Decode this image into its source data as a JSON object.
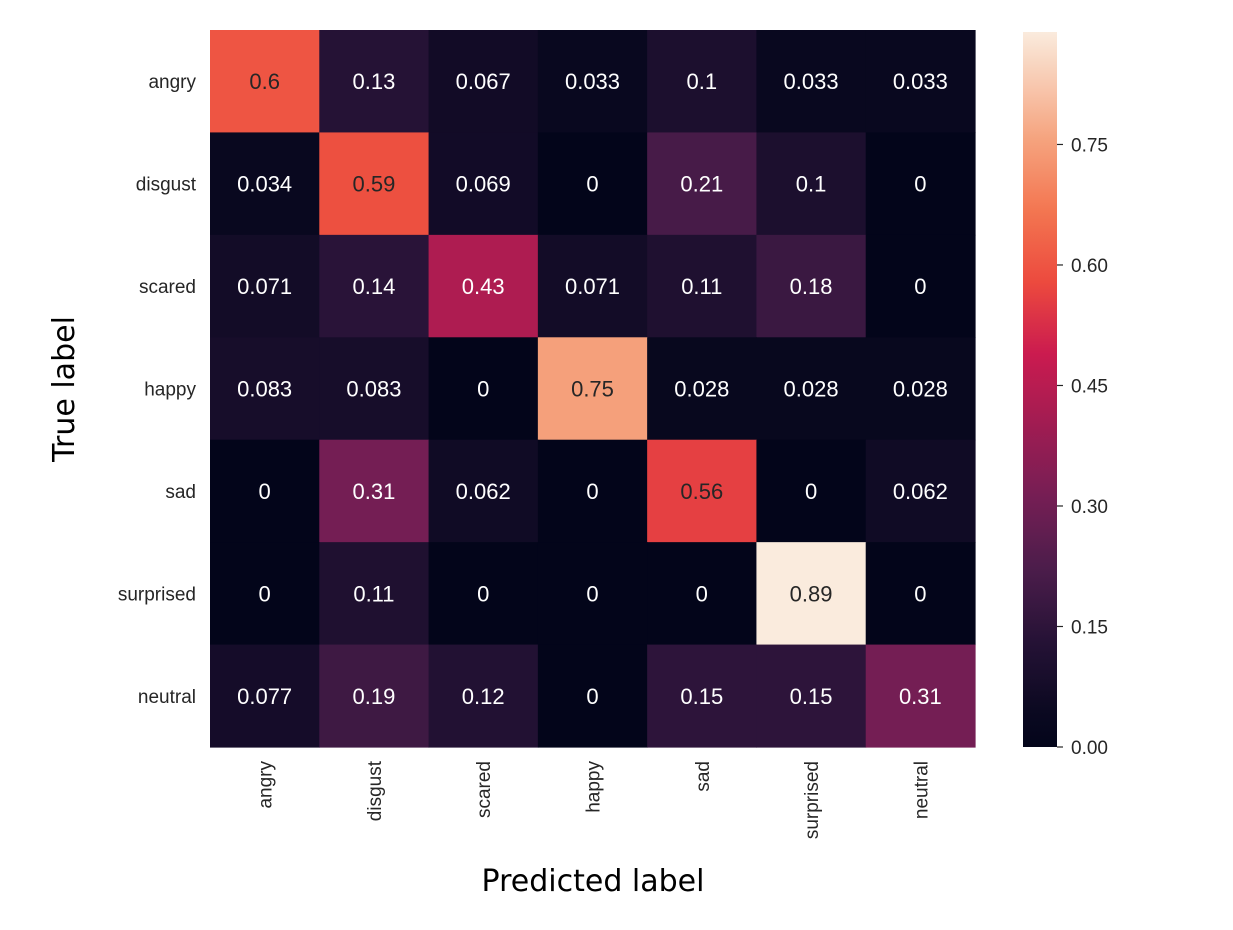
{
  "chart_data": {
    "type": "heatmap",
    "title": "",
    "xlabel": "Predicted label",
    "ylabel": "True label",
    "x_categories": [
      "angry",
      "disgust",
      "scared",
      "happy",
      "sad",
      "surprised",
      "neutral"
    ],
    "y_categories": [
      "angry",
      "disgust",
      "scared",
      "happy",
      "sad",
      "surprised",
      "neutral"
    ],
    "values": [
      [
        0.6,
        0.13,
        0.067,
        0.033,
        0.1,
        0.033,
        0.033
      ],
      [
        0.034,
        0.59,
        0.069,
        0,
        0.21,
        0.1,
        0
      ],
      [
        0.071,
        0.14,
        0.43,
        0.071,
        0.11,
        0.18,
        0
      ],
      [
        0.083,
        0.083,
        0,
        0.75,
        0.028,
        0.028,
        0.028
      ],
      [
        0,
        0.31,
        0.062,
        0,
        0.56,
        0,
        0.062
      ],
      [
        0,
        0.11,
        0,
        0,
        0,
        0.89,
        0
      ],
      [
        0.077,
        0.19,
        0.12,
        0,
        0.15,
        0.15,
        0.31
      ]
    ],
    "colorbar": {
      "range": [
        0,
        0.89
      ],
      "ticks": [
        0.0,
        0.15,
        0.3,
        0.45,
        0.6,
        0.75
      ],
      "tick_labels": [
        "0.00",
        "0.15",
        "0.30",
        "0.45",
        "0.60",
        "0.75"
      ]
    },
    "colormap": "rocket",
    "annotated": true,
    "grid": false
  }
}
